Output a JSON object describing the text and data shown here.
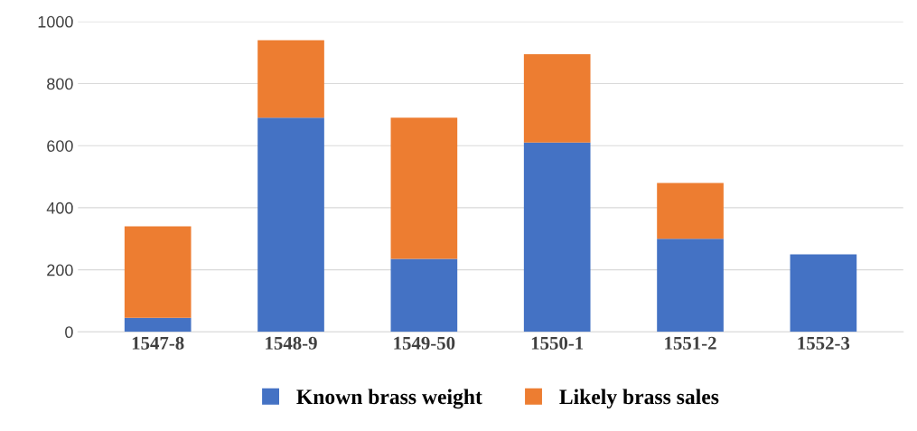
{
  "chart_data": {
    "type": "bar",
    "stacked": true,
    "categories": [
      "1547-8",
      "1548-9",
      "1549-50",
      "1550-1",
      "1551-2",
      "1552-3"
    ],
    "series": [
      {
        "name": "Known brass weight",
        "color": "#4472c4",
        "values": [
          45,
          690,
          235,
          610,
          300,
          250
        ]
      },
      {
        "name": "Likely brass sales",
        "color": "#ed7d31",
        "values": [
          295,
          250,
          455,
          285,
          180,
          0
        ]
      }
    ],
    "ylim": [
      0,
      1000
    ],
    "yticks": [
      0,
      200,
      400,
      600,
      800,
      1000
    ],
    "grid": "y",
    "legend": "bottom"
  }
}
